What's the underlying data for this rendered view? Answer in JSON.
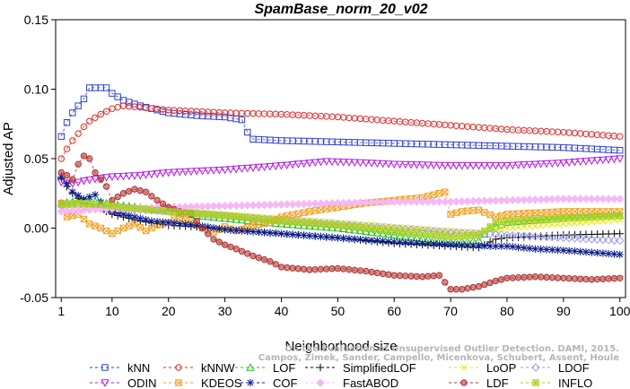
{
  "chart_data": {
    "type": "line",
    "title": "SpamBase_norm_20_v02",
    "xlabel": "Neighborhood size",
    "ylabel": "Adjusted AP",
    "xlim": [
      0,
      101
    ],
    "ylim": [
      -0.05,
      0.15
    ],
    "x_ticks": [
      1,
      10,
      20,
      30,
      40,
      50,
      60,
      70,
      80,
      90,
      100
    ],
    "y_ticks": [
      -0.05,
      0.0,
      0.05,
      0.1,
      0.15
    ],
    "y_tick_labels": [
      "-0.05",
      "0.00",
      "0.05",
      "0.10",
      "0.15"
    ],
    "grid": false,
    "legend_position": "bottom",
    "attribution_lines": [
      "Campos, Zimek, Sander, Campello, Micenkova, Schubert, Assent, Houle",
      "On the Evaluation of Unsupervised Outlier Detection. DAMI, 2015."
    ],
    "series": [
      {
        "name": "kNN",
        "color": "#2f3fd0",
        "marker": "square",
        "points": [
          [
            1,
            0.066
          ],
          [
            2,
            0.076
          ],
          [
            3,
            0.083
          ],
          [
            4,
            0.088
          ],
          [
            5,
            0.093
          ],
          [
            6,
            0.101
          ],
          [
            7,
            0.101
          ],
          [
            8,
            0.101
          ],
          [
            9,
            0.101
          ],
          [
            10,
            0.097
          ],
          [
            12,
            0.092
          ],
          [
            15,
            0.088
          ],
          [
            20,
            0.083
          ],
          [
            25,
            0.081
          ],
          [
            30,
            0.08
          ],
          [
            33,
            0.078
          ],
          [
            34,
            0.069
          ],
          [
            35,
            0.064
          ],
          [
            40,
            0.063
          ],
          [
            50,
            0.062
          ],
          [
            60,
            0.061
          ],
          [
            70,
            0.06
          ],
          [
            80,
            0.059
          ],
          [
            90,
            0.058
          ],
          [
            100,
            0.056
          ]
        ]
      },
      {
        "name": "kNNW",
        "color": "#e02a2a",
        "marker": "circle",
        "points": [
          [
            1,
            0.05
          ],
          [
            2,
            0.057
          ],
          [
            3,
            0.063
          ],
          [
            4,
            0.068
          ],
          [
            5,
            0.073
          ],
          [
            6,
            0.077
          ],
          [
            8,
            0.082
          ],
          [
            10,
            0.086
          ],
          [
            12,
            0.088
          ],
          [
            15,
            0.087
          ],
          [
            20,
            0.085
          ],
          [
            25,
            0.084
          ],
          [
            30,
            0.083
          ],
          [
            40,
            0.082
          ],
          [
            50,
            0.08
          ],
          [
            60,
            0.077
          ],
          [
            70,
            0.074
          ],
          [
            80,
            0.071
          ],
          [
            90,
            0.069
          ],
          [
            100,
            0.066
          ]
        ]
      },
      {
        "name": "LOF",
        "color": "#22c022",
        "marker": "triangle",
        "points": [
          [
            1,
            0.018
          ],
          [
            3,
            0.019
          ],
          [
            5,
            0.02
          ],
          [
            8,
            0.019
          ],
          [
            10,
            0.017
          ],
          [
            15,
            0.015
          ],
          [
            20,
            0.012
          ],
          [
            25,
            0.009
          ],
          [
            30,
            0.007
          ],
          [
            40,
            0.003
          ],
          [
            50,
            0.0
          ],
          [
            60,
            -0.005
          ],
          [
            70,
            -0.01
          ],
          [
            75,
            -0.009
          ],
          [
            77,
            0.0
          ],
          [
            80,
            0.004
          ],
          [
            90,
            0.007
          ],
          [
            100,
            0.009
          ]
        ]
      },
      {
        "name": "SimplifiedLOF",
        "color": "#000000",
        "marker": "plus",
        "points": [
          [
            1,
            0.036
          ],
          [
            2,
            0.03
          ],
          [
            3,
            0.025
          ],
          [
            5,
            0.018
          ],
          [
            8,
            0.014
          ],
          [
            10,
            0.01
          ],
          [
            15,
            0.005
          ],
          [
            20,
            0.002
          ],
          [
            25,
            0.001
          ],
          [
            30,
            -0.001
          ],
          [
            40,
            -0.004
          ],
          [
            50,
            -0.007
          ],
          [
            60,
            -0.011
          ],
          [
            70,
            -0.013
          ],
          [
            75,
            -0.014
          ],
          [
            78,
            -0.008
          ],
          [
            80,
            -0.007
          ],
          [
            85,
            -0.006
          ],
          [
            90,
            -0.005
          ],
          [
            100,
            -0.004
          ]
        ]
      },
      {
        "name": "LoOP",
        "color": "#e8e800",
        "marker": "x",
        "points": [
          [
            1,
            0.014
          ],
          [
            3,
            0.015
          ],
          [
            6,
            0.016
          ],
          [
            10,
            0.015
          ],
          [
            15,
            0.014
          ],
          [
            20,
            0.013
          ],
          [
            30,
            0.01
          ],
          [
            40,
            0.007
          ],
          [
            50,
            0.004
          ],
          [
            60,
            0.001
          ],
          [
            70,
            -0.002
          ],
          [
            75,
            -0.003
          ],
          [
            80,
            0.0
          ],
          [
            90,
            0.003
          ],
          [
            100,
            0.006
          ]
        ]
      },
      {
        "name": "LDOF",
        "color": "#9a9aee",
        "marker": "diamond",
        "points": [
          [
            1,
            0.016
          ],
          [
            4,
            0.016
          ],
          [
            8,
            0.015
          ],
          [
            12,
            0.014
          ],
          [
            20,
            0.012
          ],
          [
            30,
            0.009
          ],
          [
            40,
            0.006
          ],
          [
            50,
            0.003
          ],
          [
            60,
            0.0
          ],
          [
            70,
            -0.003
          ],
          [
            80,
            -0.005
          ],
          [
            90,
            -0.007
          ],
          [
            100,
            -0.009
          ]
        ]
      },
      {
        "name": "ODIN",
        "color": "#b21ee0",
        "marker": "triangle-down",
        "points": [
          [
            1,
            0.033
          ],
          [
            3,
            0.032
          ],
          [
            5,
            0.034
          ],
          [
            8,
            0.036
          ],
          [
            10,
            0.037
          ],
          [
            15,
            0.038
          ],
          [
            20,
            0.04
          ],
          [
            30,
            0.042
          ],
          [
            40,
            0.045
          ],
          [
            48,
            0.048
          ],
          [
            55,
            0.047
          ],
          [
            60,
            0.046
          ],
          [
            70,
            0.045
          ],
          [
            80,
            0.045
          ],
          [
            90,
            0.047
          ],
          [
            100,
            0.05
          ]
        ]
      },
      {
        "name": "KDEOS",
        "color": "#f0a020",
        "marker": "box-x",
        "points": [
          [
            1,
            0.018
          ],
          [
            2,
            0.008
          ],
          [
            4,
            0.01
          ],
          [
            6,
            0.003
          ],
          [
            8,
            0.0
          ],
          [
            10,
            -0.004
          ],
          [
            12,
            0.0
          ],
          [
            14,
            0.003
          ],
          [
            16,
            -0.002
          ],
          [
            18,
            0.002
          ],
          [
            20,
            0.004
          ],
          [
            22,
            0.008
          ],
          [
            24,
            0.004
          ],
          [
            26,
            0.0
          ],
          [
            28,
            -0.003
          ],
          [
            30,
            0.001
          ],
          [
            32,
            -0.002
          ],
          [
            35,
            0.002
          ],
          [
            38,
            0.004
          ],
          [
            40,
            0.008
          ],
          [
            45,
            0.012
          ],
          [
            50,
            0.015
          ],
          [
            55,
            0.018
          ],
          [
            60,
            0.02
          ],
          [
            65,
            0.022
          ],
          [
            69,
            0.026
          ],
          [
            70,
            0.01
          ],
          [
            72,
            0.012
          ],
          [
            75,
            0.013
          ],
          [
            78,
            0.008
          ],
          [
            80,
            0.01
          ],
          [
            85,
            0.011
          ],
          [
            90,
            0.012
          ],
          [
            100,
            0.012
          ]
        ]
      },
      {
        "name": "COF",
        "color": "#0a1a8c",
        "marker": "asterisk",
        "points": [
          [
            1,
            0.037
          ],
          [
            2,
            0.032
          ],
          [
            3,
            0.026
          ],
          [
            5,
            0.021
          ],
          [
            7,
            0.024
          ],
          [
            9,
            0.013
          ],
          [
            11,
            0.011
          ],
          [
            14,
            0.008
          ],
          [
            17,
            0.005
          ],
          [
            20,
            0.004
          ],
          [
            25,
            0.002
          ],
          [
            30,
            -0.001
          ],
          [
            40,
            -0.004
          ],
          [
            50,
            -0.007
          ],
          [
            60,
            -0.01
          ],
          [
            70,
            -0.012
          ],
          [
            77,
            -0.013
          ],
          [
            80,
            -0.013
          ],
          [
            85,
            -0.015
          ],
          [
            90,
            -0.016
          ],
          [
            100,
            -0.019
          ]
        ]
      },
      {
        "name": "FastABOD",
        "color": "#f5b8f5",
        "marker": "diamond-filled",
        "points": [
          [
            1,
            0.012
          ],
          [
            5,
            0.013
          ],
          [
            10,
            0.014
          ],
          [
            20,
            0.015
          ],
          [
            30,
            0.016
          ],
          [
            40,
            0.017
          ],
          [
            50,
            0.018
          ],
          [
            60,
            0.019
          ],
          [
            70,
            0.019
          ],
          [
            80,
            0.02
          ],
          [
            90,
            0.021
          ],
          [
            100,
            0.021
          ]
        ]
      },
      {
        "name": "LDF",
        "color": "#b03030",
        "marker": "circle-filled",
        "points": [
          [
            1,
            0.04
          ],
          [
            2,
            0.038
          ],
          [
            3,
            0.035
          ],
          [
            4,
            0.046
          ],
          [
            5,
            0.052
          ],
          [
            6,
            0.05
          ],
          [
            7,
            0.04
          ],
          [
            9,
            0.03
          ],
          [
            10,
            0.02
          ],
          [
            12,
            0.025
          ],
          [
            14,
            0.028
          ],
          [
            16,
            0.026
          ],
          [
            18,
            0.02
          ],
          [
            20,
            0.015
          ],
          [
            22,
            0.012
          ],
          [
            24,
            0.01
          ],
          [
            26,
            0.0
          ],
          [
            28,
            -0.008
          ],
          [
            30,
            -0.012
          ],
          [
            32,
            -0.015
          ],
          [
            35,
            -0.02
          ],
          [
            38,
            -0.024
          ],
          [
            40,
            -0.028
          ],
          [
            45,
            -0.03
          ],
          [
            50,
            -0.029
          ],
          [
            55,
            -0.031
          ],
          [
            60,
            -0.034
          ],
          [
            65,
            -0.035
          ],
          [
            68,
            -0.034
          ],
          [
            70,
            -0.044
          ],
          [
            72,
            -0.044
          ],
          [
            75,
            -0.042
          ],
          [
            78,
            -0.038
          ],
          [
            80,
            -0.036
          ],
          [
            85,
            -0.035
          ],
          [
            90,
            -0.036
          ],
          [
            95,
            -0.037
          ],
          [
            100,
            -0.036
          ]
        ]
      },
      {
        "name": "INFLO",
        "color": "#a8d020",
        "marker": "box-plus",
        "points": [
          [
            1,
            0.017
          ],
          [
            4,
            0.018
          ],
          [
            8,
            0.017
          ],
          [
            12,
            0.015
          ],
          [
            20,
            0.012
          ],
          [
            30,
            0.009
          ],
          [
            40,
            0.005
          ],
          [
            50,
            0.002
          ],
          [
            60,
            -0.002
          ],
          [
            70,
            -0.006
          ],
          [
            75,
            -0.005
          ],
          [
            78,
            0.004
          ],
          [
            80,
            0.005
          ],
          [
            90,
            0.007
          ],
          [
            100,
            0.009
          ]
        ]
      }
    ]
  }
}
